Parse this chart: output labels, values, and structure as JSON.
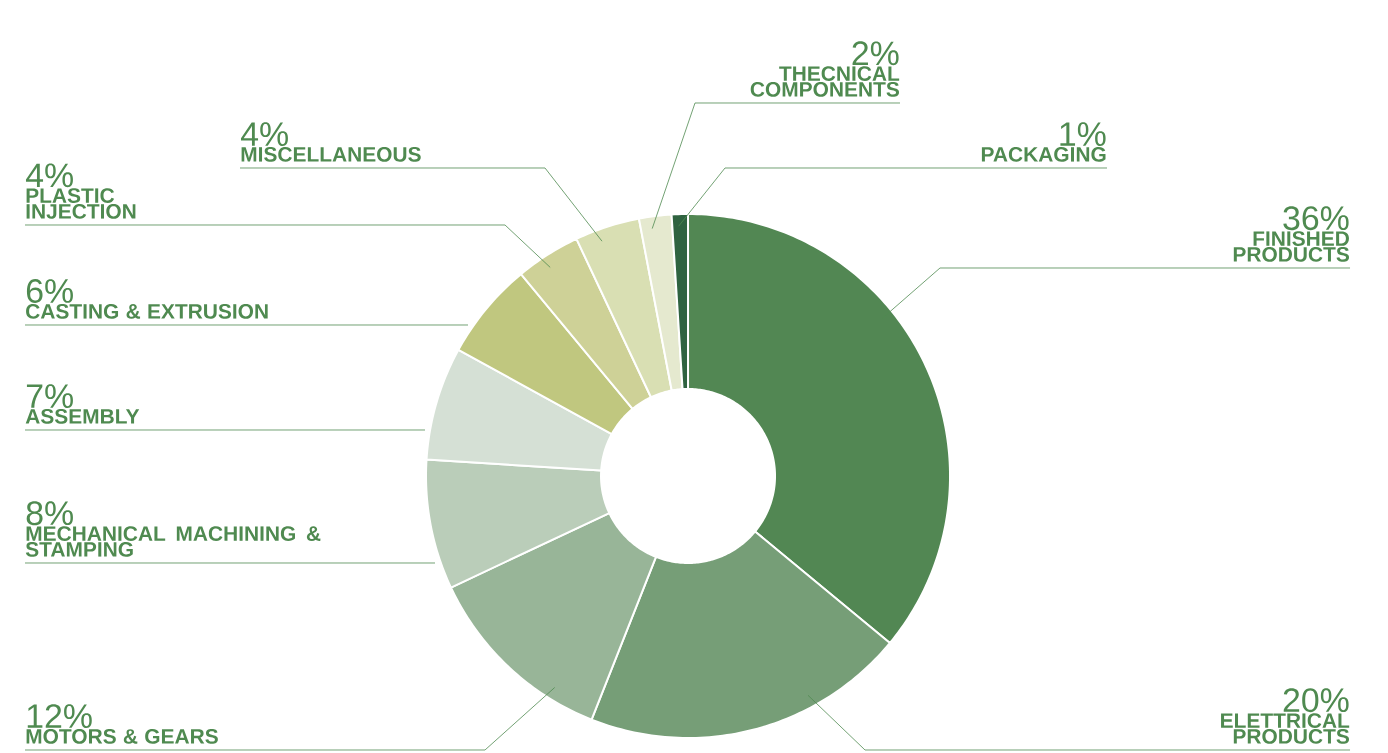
{
  "chart_data": {
    "type": "donut",
    "categories": [
      "FINISHED PRODUCTS",
      "ELETTRICAL PRODUCTS",
      "MOTORS & GEARS",
      "MECHANICAL MACHINING & STAMPING",
      "ASSEMBLY",
      "CASTING & EXTRUSION",
      "PLASTIC INJECTION",
      "MISCELLANEOUS",
      "THECNICAL COMPONENTS",
      "PACKAGING"
    ],
    "values": [
      36,
      20,
      12,
      8,
      7,
      6,
      4,
      4,
      2,
      1
    ],
    "value_labels": [
      "36%",
      "20%",
      "12%",
      "8%",
      "7%",
      "6%",
      "4%",
      "4%",
      "2%",
      "1%"
    ],
    "colors": [
      "#528753",
      "#769e77",
      "#98b598",
      "#bacdb9",
      "#d5e0d5",
      "#c0c77f",
      "#ced197",
      "#d9dfb3",
      "#e5e9cf",
      "#2f6340"
    ]
  }
}
